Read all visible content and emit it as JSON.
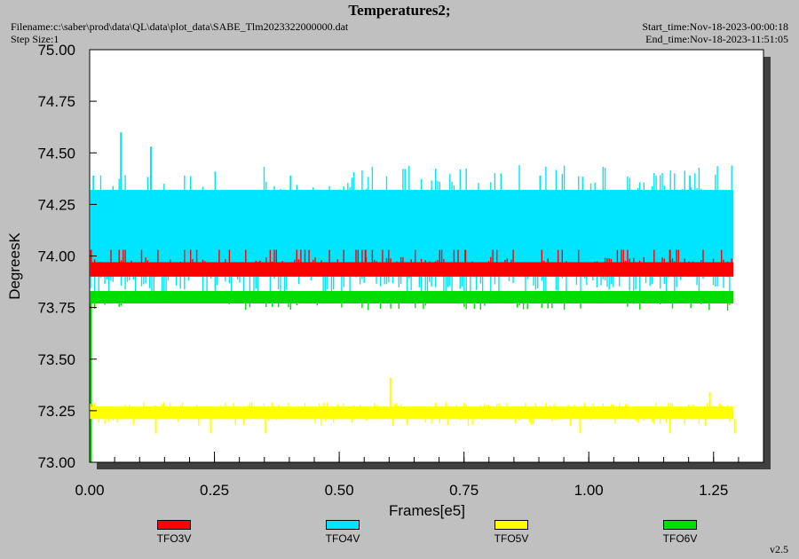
{
  "header": {
    "title": "Temperatures2;",
    "filename": "Filename:c:\\saber\\prod\\data\\QL\\data\\plot_data\\SABE_Tlm2023322000000.dat",
    "step_size": "Step Size:1",
    "start_time": "Start_time:Nov-18-2023-00:00:18",
    "end_time": "End_time:Nov-18-2023-11:51:05"
  },
  "version": "v2.5",
  "chart_data": {
    "type": "line",
    "xlabel": "Frames[e5]",
    "ylabel": "DegreesK",
    "xlim": [
      0.0,
      1.35
    ],
    "ylim": [
      73.0,
      75.0
    ],
    "x_ticks": [
      "0.00",
      "0.25",
      "0.50",
      "0.75",
      "1.00",
      "1.25"
    ],
    "x_tick_values": [
      0.0,
      0.25,
      0.5,
      0.75,
      1.0,
      1.25
    ],
    "y_ticks": [
      "73.00",
      "73.25",
      "73.50",
      "73.75",
      "74.00",
      "74.25",
      "74.50",
      "74.75",
      "75.00"
    ],
    "y_tick_values": [
      73.0,
      73.25,
      73.5,
      73.75,
      74.0,
      74.25,
      74.5,
      74.75,
      75.0
    ],
    "grid": false,
    "legend_position": "bottom",
    "series": [
      {
        "name": "TFO3V",
        "color": "#ff0000",
        "x_range": [
          0.0,
          1.29
        ],
        "min": 73.9,
        "max": 74.03,
        "typical": [
          73.9,
          73.97
        ],
        "spikes": [
          [
            0.0,
            74.03
          ],
          [
            0.55,
            74.03
          ],
          [
            0.75,
            74.03
          ],
          [
            1.16,
            74.03
          ]
        ]
      },
      {
        "name": "TFO4V",
        "color": "#00e5ff",
        "x_range": [
          0.0,
          1.29
        ],
        "min": 73.76,
        "max": 74.6,
        "typical": [
          73.97,
          74.32
        ],
        "spikes": [
          [
            0.06,
            74.6
          ],
          [
            0.12,
            74.53
          ],
          [
            0.005,
            74.39
          ],
          [
            0.4,
            74.39
          ],
          [
            0.9,
            74.39
          ],
          [
            1.2,
            74.39
          ]
        ]
      },
      {
        "name": "TFO5V",
        "color": "#ffff00",
        "x_range": [
          0.0,
          1.29
        ],
        "min": 73.14,
        "max": 73.41,
        "typical": [
          73.21,
          73.27
        ],
        "spikes": [
          [
            0.6,
            73.41
          ],
          [
            1.24,
            73.34
          ],
          [
            0.13,
            73.14
          ],
          [
            0.24,
            73.14
          ],
          [
            0.35,
            73.14
          ],
          [
            0.98,
            73.14
          ],
          [
            1.16,
            73.14
          ],
          [
            1.29,
            73.14
          ]
        ]
      },
      {
        "name": "TFO6V",
        "color": "#00dd00",
        "x_range": [
          0.0,
          1.29
        ],
        "min": 73.0,
        "max": 73.83,
        "typical": [
          73.77,
          73.83
        ],
        "spikes": [
          [
            0.0,
            73.0
          ]
        ]
      }
    ]
  }
}
